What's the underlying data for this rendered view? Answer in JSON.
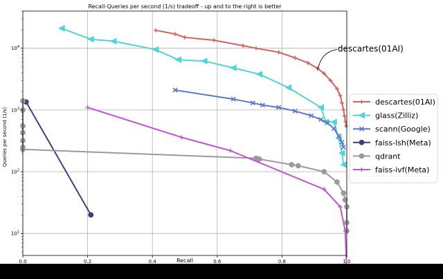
{
  "chart_data": {
    "type": "line",
    "title": "Recall-Queries per second (1/s) tradeoff - up and to the right is better",
    "xlabel": "Recall",
    "ylabel": "Queries per second (1/s)",
    "xlim": [
      0.0,
      1.0
    ],
    "ylim": [
      4.4,
      40000
    ],
    "yscale": "log",
    "grid": true,
    "legend_position": "right",
    "x_ticks": [
      "0.0",
      "0.2",
      "0.4",
      "0.6",
      "0.8",
      "1.0"
    ],
    "y_ticks": [
      {
        "base": "10",
        "exp": "1",
        "value": 10
      },
      {
        "base": "10",
        "exp": "2",
        "value": 100
      },
      {
        "base": "10",
        "exp": "3",
        "value": 1000
      },
      {
        "base": "10",
        "exp": "4",
        "value": 10000
      }
    ],
    "annotation": {
      "text": "descartes(01AI)",
      "point": [
        0.91,
        4500
      ]
    },
    "series": [
      {
        "name": "descartes(01AI)",
        "color": "#d9605f",
        "marker": "plus",
        "points": [
          [
            0.41,
            19500
          ],
          [
            0.47,
            17000
          ],
          [
            0.5,
            15000
          ],
          [
            0.59,
            13500
          ],
          [
            0.68,
            11000
          ],
          [
            0.72,
            10000
          ],
          [
            0.79,
            8600
          ],
          [
            0.84,
            7000
          ],
          [
            0.88,
            5800
          ],
          [
            0.91,
            4700
          ],
          [
            0.93,
            3900
          ],
          [
            0.95,
            3000
          ],
          [
            0.97,
            2200
          ],
          [
            0.98,
            1700
          ],
          [
            0.985,
            1300
          ],
          [
            0.99,
            1000
          ],
          [
            0.993,
            800
          ],
          [
            0.996,
            650
          ],
          [
            0.998,
            550
          ]
        ]
      },
      {
        "name": "glass(Zilliz)",
        "color": "#4ed5d8",
        "marker": "triangle",
        "points": [
          [
            0.12,
            21000
          ],
          [
            0.21,
            14000
          ],
          [
            0.28,
            13000
          ],
          [
            0.41,
            9500
          ],
          [
            0.48,
            6500
          ],
          [
            0.56,
            6200
          ],
          [
            0.65,
            4800
          ],
          [
            0.73,
            3800
          ],
          [
            0.82,
            2300
          ],
          [
            0.92,
            1100
          ],
          [
            0.935,
            640
          ],
          [
            0.96,
            640
          ],
          [
            0.975,
            350
          ],
          [
            0.985,
            200
          ],
          [
            0.99,
            130
          ]
        ]
      },
      {
        "name": "scann(Google)",
        "color": "#5c77cf",
        "marker": "x",
        "points": [
          [
            0.47,
            2100
          ],
          [
            0.65,
            1500
          ],
          [
            0.71,
            1300
          ],
          [
            0.74,
            1200
          ],
          [
            0.79,
            1100
          ],
          [
            0.84,
            960
          ],
          [
            0.89,
            810
          ],
          [
            0.92,
            700
          ],
          [
            0.94,
            620
          ],
          [
            0.96,
            500
          ],
          [
            0.975,
            380
          ],
          [
            0.985,
            300
          ],
          [
            0.99,
            250
          ]
        ]
      },
      {
        "name": "faiss-lsh(Meta)",
        "color": "#3d3f80",
        "marker": "circle",
        "points": [
          [
            0.01,
            1350
          ],
          [
            0.21,
            20
          ]
        ]
      },
      {
        "name": "qdrant",
        "color": "#9a9a9a",
        "marker": "circle",
        "points": [
          [
            0.0,
            1400
          ],
          [
            0.0,
            1000
          ],
          [
            0.0,
            550
          ],
          [
            0.0,
            430
          ],
          [
            0.0,
            320
          ],
          [
            0.0,
            250
          ],
          [
            0.0,
            230
          ],
          [
            0.72,
            165
          ],
          [
            0.73,
            160
          ],
          [
            0.83,
            130
          ],
          [
            0.85,
            125
          ],
          [
            0.93,
            100
          ],
          [
            0.97,
            68
          ],
          [
            0.99,
            45
          ],
          [
            0.995,
            35
          ],
          [
            1.0,
            27
          ],
          [
            1.0,
            15
          ],
          [
            1.0,
            11
          ]
        ]
      },
      {
        "name": "faiss-ivf(Meta)",
        "color": "#c054d3",
        "marker": "plus",
        "points": [
          [
            0.2,
            1100
          ],
          [
            0.49,
            360
          ],
          [
            0.64,
            220
          ],
          [
            0.93,
            52
          ],
          [
            0.98,
            27
          ],
          [
            0.995,
            11
          ],
          [
            1.0,
            2.5
          ]
        ]
      }
    ]
  }
}
